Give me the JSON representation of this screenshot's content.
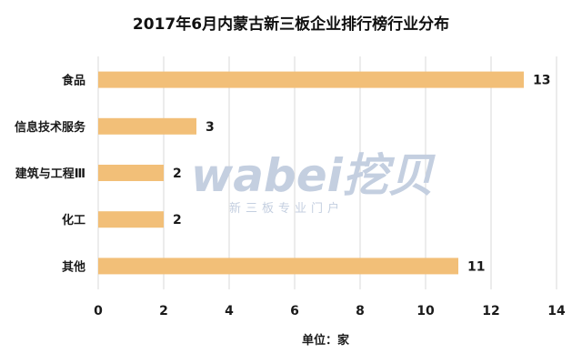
{
  "chart_data": {
    "type": "bar",
    "orientation": "horizontal",
    "title": "2017年6月内蒙古新三板企业排行榜行业分布",
    "xlabel": "单位：家",
    "ylabel": "",
    "categories": [
      "食品",
      "信息技术服务",
      "建筑与工程Ⅲ",
      "化工",
      "其他"
    ],
    "values": [
      13,
      3,
      2,
      2,
      11
    ],
    "xlim": [
      0,
      14
    ],
    "xticks": [
      0,
      2,
      4,
      6,
      8,
      10,
      12,
      14
    ],
    "grid": true,
    "legend": "none",
    "bar_color": "#f2bf78",
    "grid_color": "#d9d9d9"
  },
  "watermark": {
    "brand": "wabei挖贝",
    "tagline": "新三板专业门户"
  }
}
